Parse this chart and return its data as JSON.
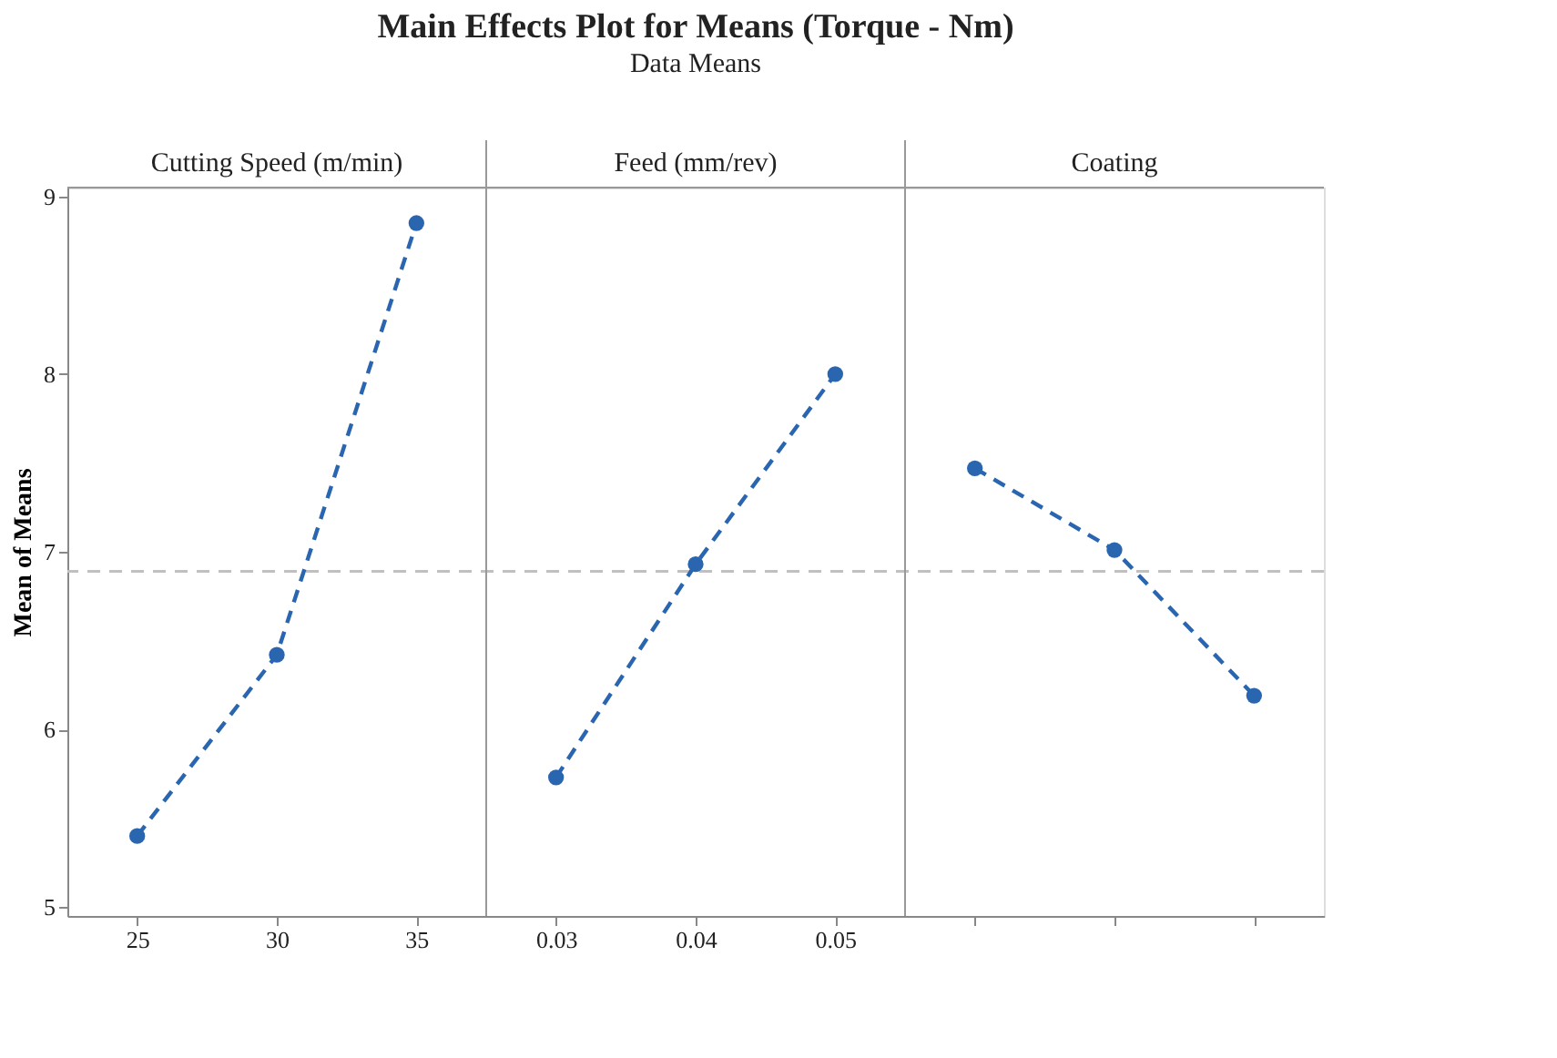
{
  "chart_data": {
    "type": "line",
    "title": "Main Effects Plot for Means (Torque - Nm)",
    "subtitle": "Data Means",
    "ylabel": "Mean of Means",
    "categories": [
      "25",
      "30",
      "35",
      "0.03",
      "0.04",
      "0.05",
      null,
      null,
      null
    ],
    "series": [
      {
        "color": "#2a66b0",
        "values": [
          5.4,
          6.42,
          8.85,
          null,
          null,
          null,
          null,
          null,
          null
        ]
      },
      {
        "color": "#2a66b0",
        "values": [
          null,
          null,
          null,
          5.73,
          6.93,
          8.0,
          null,
          null,
          null
        ]
      },
      {
        "color": "#2a66b0",
        "values": [
          null,
          null,
          null,
          null,
          null,
          null,
          7.47,
          7.01,
          6.19
        ]
      }
    ],
    "annotations": [
      "Cutting Speed (m/min)",
      "Feed (mm/rev)",
      "Coating"
    ],
    "ylim": [
      4.95,
      9.05
    ],
    "yticks": [
      5,
      6,
      7,
      8,
      9
    ],
    "ref_lines": [
      {
        "axis": "y",
        "value": 6.89,
        "color": "#c0c0c0",
        "line_style": "dashed"
      }
    ],
    "marker": "circle",
    "line_style": "dashed",
    "grid": false
  }
}
